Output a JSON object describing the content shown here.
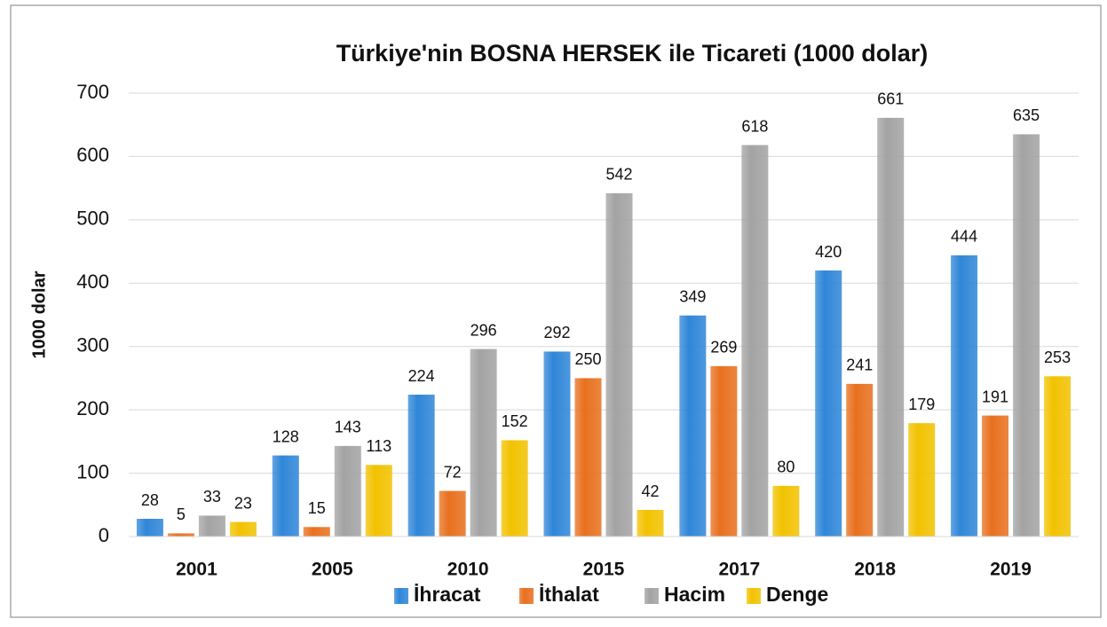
{
  "chart_data": {
    "type": "bar",
    "title": "Türkiye'nin BOSNA HERSEK ile Ticareti (1000 dolar)",
    "y_label": "1000 dolar",
    "categories": [
      "2001",
      "2005",
      "2010",
      "2015",
      "2017",
      "2018",
      "2019"
    ],
    "series": [
      {
        "name": "İhracat",
        "color": "#2f86d8",
        "values": [
          28,
          128,
          224,
          292,
          349,
          420,
          444
        ]
      },
      {
        "name": "İthalat",
        "color": "#e8701e",
        "values": [
          5,
          15,
          72,
          250,
          269,
          241,
          191
        ]
      },
      {
        "name": "Hacim",
        "color": "#a3a3a3",
        "values": [
          33,
          143,
          296,
          542,
          618,
          661,
          635
        ]
      },
      {
        "name": "Denge",
        "color": "#f2c200",
        "values": [
          23,
          113,
          152,
          42,
          80,
          179,
          253
        ]
      }
    ],
    "ylim": [
      0,
      700
    ],
    "yticks": [
      0,
      100,
      200,
      300,
      400,
      500,
      600,
      700
    ],
    "grid": true,
    "legend": "bottom"
  }
}
